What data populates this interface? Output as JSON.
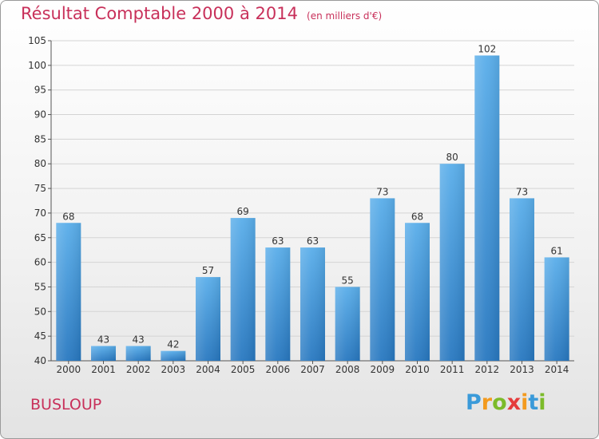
{
  "title": "Résultat Comptable 2000 à 2014",
  "unit_note": "(en milliers d'€)",
  "commune": "BUSLOUP",
  "logo": {
    "letters": [
      "P",
      "r",
      "o",
      "x",
      "i",
      "t",
      "i"
    ],
    "colors": [
      "#3a9ad9",
      "#f39a1e",
      "#7cbb2a",
      "#e53c3c",
      "#f39a1e",
      "#3a9ad9",
      "#7cbb2a"
    ]
  },
  "colors": {
    "bar": "#3a8fd6",
    "title": "#c8305a"
  },
  "chart_data": {
    "type": "bar",
    "categories": [
      "2000",
      "2001",
      "2002",
      "2003",
      "2004",
      "2005",
      "2006",
      "2007",
      "2008",
      "2009",
      "2010",
      "2011",
      "2012",
      "2013",
      "2014"
    ],
    "values": [
      68,
      43,
      43,
      42,
      57,
      69,
      63,
      63,
      55,
      73,
      68,
      80,
      102,
      73,
      61
    ],
    "ylim": [
      40,
      105
    ],
    "yticks": [
      40,
      45,
      50,
      55,
      60,
      65,
      70,
      75,
      80,
      85,
      90,
      95,
      100,
      105
    ],
    "grid": true,
    "legend": "none"
  }
}
